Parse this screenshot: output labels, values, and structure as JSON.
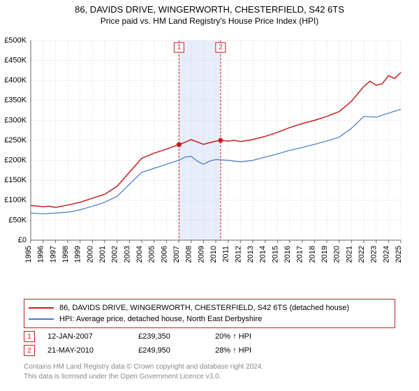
{
  "title_line1": "86, DAVIDS DRIVE, WINGERWORTH, CHESTERFIELD, S42 6TS",
  "title_line2": "Price paid vs. HM Land Registry's House Price Index (HPI)",
  "chart": {
    "type": "line",
    "background_color": "#ffffff",
    "grid_color": "#cccccc",
    "y_axis": {
      "min": 0,
      "max": 500000,
      "step": 50000,
      "tick_labels": [
        "£0",
        "£50K",
        "£100K",
        "£150K",
        "£200K",
        "£250K",
        "£300K",
        "£350K",
        "£400K",
        "£450K",
        "£500K"
      ],
      "tick_values": [
        0,
        50000,
        100000,
        150000,
        200000,
        250000,
        300000,
        350000,
        400000,
        450000,
        500000
      ]
    },
    "x_axis": {
      "min": 1995,
      "max": 2025,
      "ticks": [
        1995,
        1996,
        1997,
        1998,
        1999,
        2000,
        2001,
        2002,
        2003,
        2004,
        2005,
        2006,
        2007,
        2008,
        2009,
        2010,
        2011,
        2012,
        2013,
        2014,
        2015,
        2016,
        2017,
        2018,
        2019,
        2020,
        2021,
        2022,
        2023,
        2024,
        2025
      ]
    },
    "shaded_band": {
      "x_start": 2007.02,
      "x_end": 2010.39,
      "fill": "#e8edfa"
    },
    "series": [
      {
        "name": "86, DAVIDS DRIVE, WINGERWORTH, CHESTERFIELD, S42 6TS (detached house)",
        "color": "#c41e1e",
        "line_width": 1.5,
        "points": [
          [
            1995,
            87000
          ],
          [
            1996,
            84000
          ],
          [
            1996.5,
            85000
          ],
          [
            1997,
            82000
          ],
          [
            1998,
            88000
          ],
          [
            1999,
            95000
          ],
          [
            2000,
            105000
          ],
          [
            2001,
            115000
          ],
          [
            2002,
            135000
          ],
          [
            2003,
            170000
          ],
          [
            2004,
            205000
          ],
          [
            2005,
            218000
          ],
          [
            2006,
            228000
          ],
          [
            2007,
            239350
          ],
          [
            2007.5,
            245000
          ],
          [
            2008,
            252000
          ],
          [
            2008.5,
            246000
          ],
          [
            2009,
            240000
          ],
          [
            2009.5,
            244000
          ],
          [
            2010,
            248000
          ],
          [
            2010.39,
            249950
          ],
          [
            2011,
            248000
          ],
          [
            2011.5,
            250000
          ],
          [
            2012,
            247000
          ],
          [
            2013,
            252000
          ],
          [
            2014,
            260000
          ],
          [
            2015,
            270000
          ],
          [
            2016,
            282000
          ],
          [
            2017,
            292000
          ],
          [
            2018,
            300000
          ],
          [
            2019,
            310000
          ],
          [
            2020,
            322000
          ],
          [
            2021,
            348000
          ],
          [
            2022,
            385000
          ],
          [
            2022.5,
            398000
          ],
          [
            2023,
            388000
          ],
          [
            2023.5,
            392000
          ],
          [
            2024,
            412000
          ],
          [
            2024.5,
            405000
          ],
          [
            2025,
            420000
          ]
        ]
      },
      {
        "name": "HPI: Average price, detached house, North East Derbyshire",
        "color": "#4878c4",
        "line_width": 1.2,
        "points": [
          [
            1995,
            68000
          ],
          [
            1996,
            66000
          ],
          [
            1997,
            68000
          ],
          [
            1998,
            70000
          ],
          [
            1999,
            76000
          ],
          [
            2000,
            85000
          ],
          [
            2001,
            95000
          ],
          [
            2002,
            110000
          ],
          [
            2003,
            140000
          ],
          [
            2004,
            170000
          ],
          [
            2005,
            180000
          ],
          [
            2006,
            190000
          ],
          [
            2007,
            200000
          ],
          [
            2007.5,
            208000
          ],
          [
            2008,
            210000
          ],
          [
            2008.5,
            198000
          ],
          [
            2009,
            190000
          ],
          [
            2009.5,
            198000
          ],
          [
            2010,
            202000
          ],
          [
            2011,
            200000
          ],
          [
            2012,
            196000
          ],
          [
            2013,
            200000
          ],
          [
            2014,
            208000
          ],
          [
            2015,
            216000
          ],
          [
            2016,
            225000
          ],
          [
            2017,
            232000
          ],
          [
            2018,
            240000
          ],
          [
            2019,
            248000
          ],
          [
            2020,
            258000
          ],
          [
            2021,
            280000
          ],
          [
            2022,
            310000
          ],
          [
            2023,
            308000
          ],
          [
            2024,
            318000
          ],
          [
            2025,
            328000
          ]
        ]
      }
    ],
    "markers": [
      {
        "label": "1",
        "x": 2007.02,
        "y": 239350,
        "line_color": "#c41e1e",
        "point_color": "#c41e1e"
      },
      {
        "label": "2",
        "x": 2010.39,
        "y": 249950,
        "line_color": "#c41e1e",
        "point_color": "#c41e1e"
      }
    ]
  },
  "legend": {
    "border_color": "#c41e1e",
    "items": [
      {
        "color": "#c41e1e",
        "label": "86, DAVIDS DRIVE, WINGERWORTH, CHESTERFIELD, S42 6TS (detached house)"
      },
      {
        "color": "#4878c4",
        "label": "HPI: Average price, detached house, North East Derbyshire"
      }
    ]
  },
  "sale_markers": [
    {
      "badge": "1",
      "date": "12-JAN-2007",
      "price": "£239,350",
      "pct": "20% ↑ HPI"
    },
    {
      "badge": "2",
      "date": "21-MAY-2010",
      "price": "£249,950",
      "pct": "28% ↑ HPI"
    }
  ],
  "footnote1": "Contains HM Land Registry data © Crown copyright and database right 2024.",
  "footnote2": "This data is licensed under the Open Government Licence v3.0."
}
